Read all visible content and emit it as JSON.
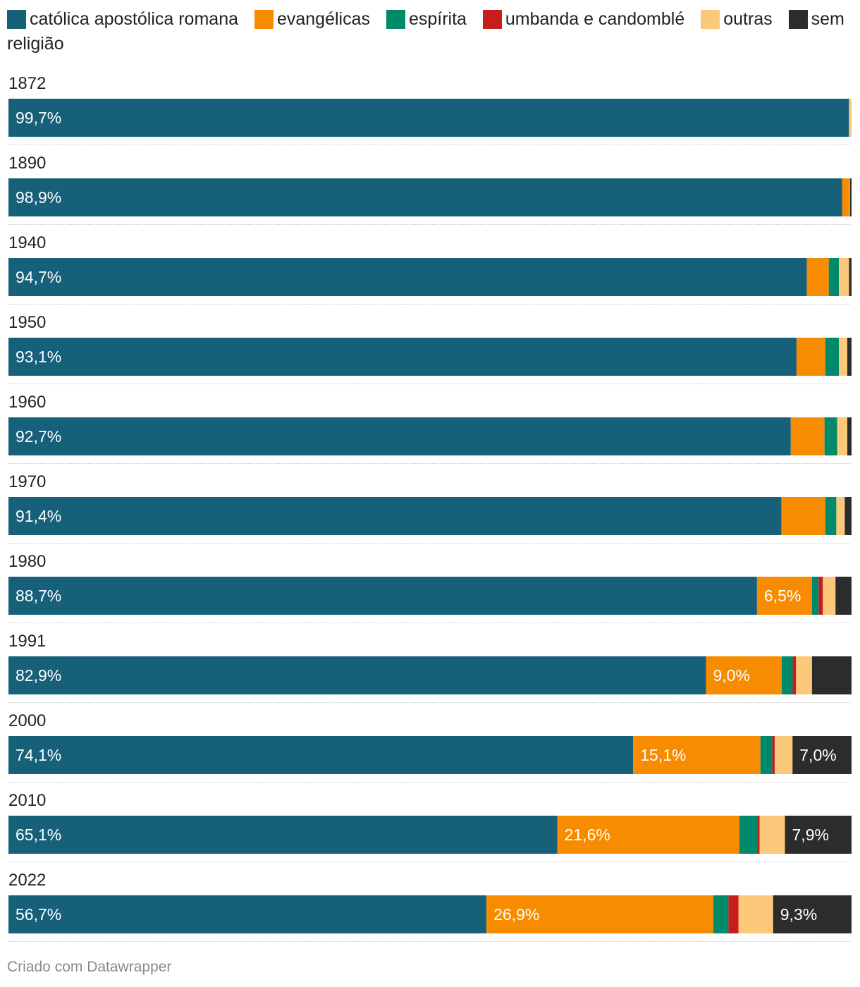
{
  "chart_data": {
    "type": "bar",
    "orientation": "horizontal",
    "stacked": true,
    "categories": [
      "1872",
      "1890",
      "1940",
      "1950",
      "1960",
      "1970",
      "1980",
      "1991",
      "2000",
      "2010",
      "2022"
    ],
    "series": [
      {
        "name": "católica apostólica romana",
        "color": "#17607a",
        "values": [
          99.7,
          98.9,
          94.7,
          93.1,
          92.7,
          91.4,
          88.7,
          82.9,
          74.1,
          65.1,
          56.7
        ]
      },
      {
        "name": "evangélicas",
        "color": "#f78c00",
        "values": [
          0.0,
          0.8,
          2.6,
          3.4,
          4.0,
          5.2,
          6.5,
          9.0,
          15.1,
          21.6,
          26.9
        ]
      },
      {
        "name": "espírita",
        "color": "#00896b",
        "values": [
          0.0,
          0.0,
          1.2,
          1.6,
          1.5,
          1.3,
          0.8,
          1.3,
          1.4,
          2.1,
          1.8
        ]
      },
      {
        "name": "umbanda e candomblé",
        "color": "#c71e1d",
        "values": [
          0.0,
          0.0,
          0.0,
          0.0,
          0.0,
          0.0,
          0.5,
          0.4,
          0.3,
          0.3,
          1.2
        ]
      },
      {
        "name": "outras",
        "color": "#fcc97a",
        "values": [
          0.3,
          0.1,
          1.2,
          1.0,
          1.2,
          1.0,
          1.5,
          1.9,
          2.1,
          3.0,
          4.1
        ]
      },
      {
        "name": "sem religião",
        "color": "#2c2c2c",
        "values": [
          0.0,
          0.2,
          0.3,
          0.5,
          0.5,
          0.8,
          1.9,
          4.7,
          7.0,
          7.9,
          9.3
        ]
      }
    ],
    "labels": [
      [
        "99,7%",
        "",
        "",
        "",
        "",
        ""
      ],
      [
        "98,9%",
        "",
        "",
        "",
        "",
        ""
      ],
      [
        "94,7%",
        "",
        "",
        "",
        "",
        ""
      ],
      [
        "93,1%",
        "",
        "",
        "",
        "",
        ""
      ],
      [
        "92,7%",
        "",
        "",
        "",
        "",
        ""
      ],
      [
        "91,4%",
        "",
        "",
        "",
        "",
        ""
      ],
      [
        "88,7%",
        "6,5%",
        "",
        "",
        "",
        ""
      ],
      [
        "82,9%",
        "9,0%",
        "",
        "",
        "",
        ""
      ],
      [
        "74,1%",
        "15,1%",
        "",
        "",
        "",
        "7,0%"
      ],
      [
        "65,1%",
        "21,6%",
        "",
        "",
        "",
        "7,9%"
      ],
      [
        "56,7%",
        "26,9%",
        "",
        "",
        "",
        "9,3%"
      ]
    ],
    "xlim": [
      0,
      100
    ],
    "legend_position": "top-left"
  },
  "footer": {
    "credit": "Criado com Datawrapper"
  }
}
